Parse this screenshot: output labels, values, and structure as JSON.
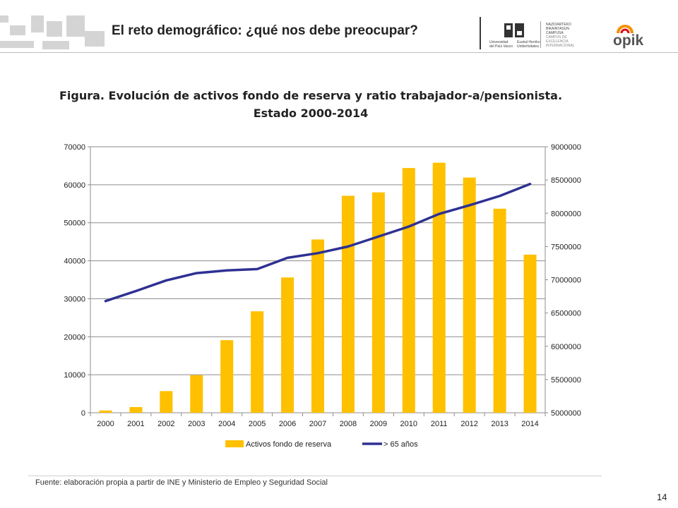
{
  "header": {
    "title": "El reto demográfico: ¿qué nos debe preocupar?",
    "logo_upv_lines": [
      "Universidad",
      "del País Vasco"
    ],
    "logo_ehu_lines": [
      "Euskal Herriko",
      "Unibertsitatea"
    ],
    "logo_campus_lines": [
      "NAZIOARTEKO",
      "BIKAINTASUN",
      "CAMPUSA",
      "CAMPUS DE",
      "EXCELENCIA",
      "INTERNACIONAL"
    ],
    "logo_opik": "opik"
  },
  "chart_data": {
    "type": "bar",
    "title_line1": "Figura. Evolución de activos fondo de reserva y ratio trabajador-a/pensionista.",
    "title_line2": "Estado 2000-2014",
    "categories": [
      "2000",
      "2001",
      "2002",
      "2003",
      "2004",
      "2005",
      "2006",
      "2007",
      "2008",
      "2009",
      "2010",
      "2011",
      "2012",
      "2013",
      "2014"
    ],
    "series": [
      {
        "name": "Activos fondo de reserva",
        "type": "bar",
        "axis": "left",
        "color": "#FFC000",
        "values": [
          600,
          1500,
          5700,
          9900,
          19100,
          26700,
          35600,
          45600,
          57100,
          58000,
          64400,
          65800,
          61900,
          53700,
          41600
        ]
      },
      {
        "name": "> 65 años",
        "type": "line",
        "axis": "right",
        "color": "#2E3192",
        "values": [
          6680000,
          6830000,
          6990000,
          7100000,
          7140000,
          7160000,
          7330000,
          7400000,
          7500000,
          7650000,
          7800000,
          7990000,
          8120000,
          8260000,
          8440000
        ]
      }
    ],
    "left_axis": {
      "min": 0,
      "max": 70000,
      "ticks": [
        "0",
        "10000",
        "20000",
        "30000",
        "40000",
        "50000",
        "60000",
        "70000"
      ]
    },
    "right_axis": {
      "min": 5000000,
      "max": 9000000,
      "ticks": [
        "5000000",
        "5500000",
        "6000000",
        "6500000",
        "7000000",
        "7500000",
        "8000000",
        "8500000",
        "9000000"
      ]
    },
    "grid": true,
    "legend_position": "bottom"
  },
  "footer": {
    "source": "Fuente: elaboración propia a partir de INE y Ministerio de Empleo y Seguridad Social",
    "page_number": "14"
  }
}
